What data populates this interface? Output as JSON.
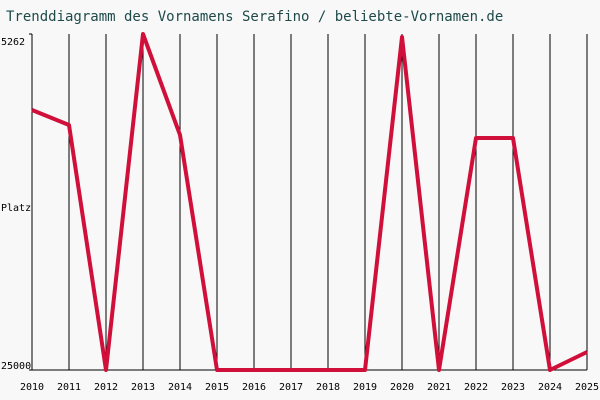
{
  "chart_data": {
    "type": "line",
    "title": "Trenddiagramm des Vornamens Serafino / beliebte-Vornamen.de",
    "ylabel": "Platz",
    "x": [
      2010,
      2011,
      2012,
      2013,
      2014,
      2015,
      2016,
      2017,
      2018,
      2019,
      2020,
      2021,
      2022,
      2023,
      2024,
      2025
    ],
    "series": [
      {
        "name": "Serafino",
        "color": "#d0103a",
        "values": [
          9726,
          10608,
          25000,
          5262,
          11195,
          25000,
          25000,
          25000,
          25000,
          25000,
          5438,
          25000,
          11371,
          11371,
          25000,
          23942
        ]
      }
    ],
    "xlim": [
      2010,
      2025
    ],
    "xticks": [
      2010,
      2011,
      2012,
      2013,
      2014,
      2015,
      2016,
      2017,
      2018,
      2019,
      2020,
      2021,
      2022,
      2023,
      2024,
      2025
    ],
    "ylim": [
      25000,
      5262
    ],
    "yticks": [
      5262,
      25000
    ],
    "grid": true
  }
}
